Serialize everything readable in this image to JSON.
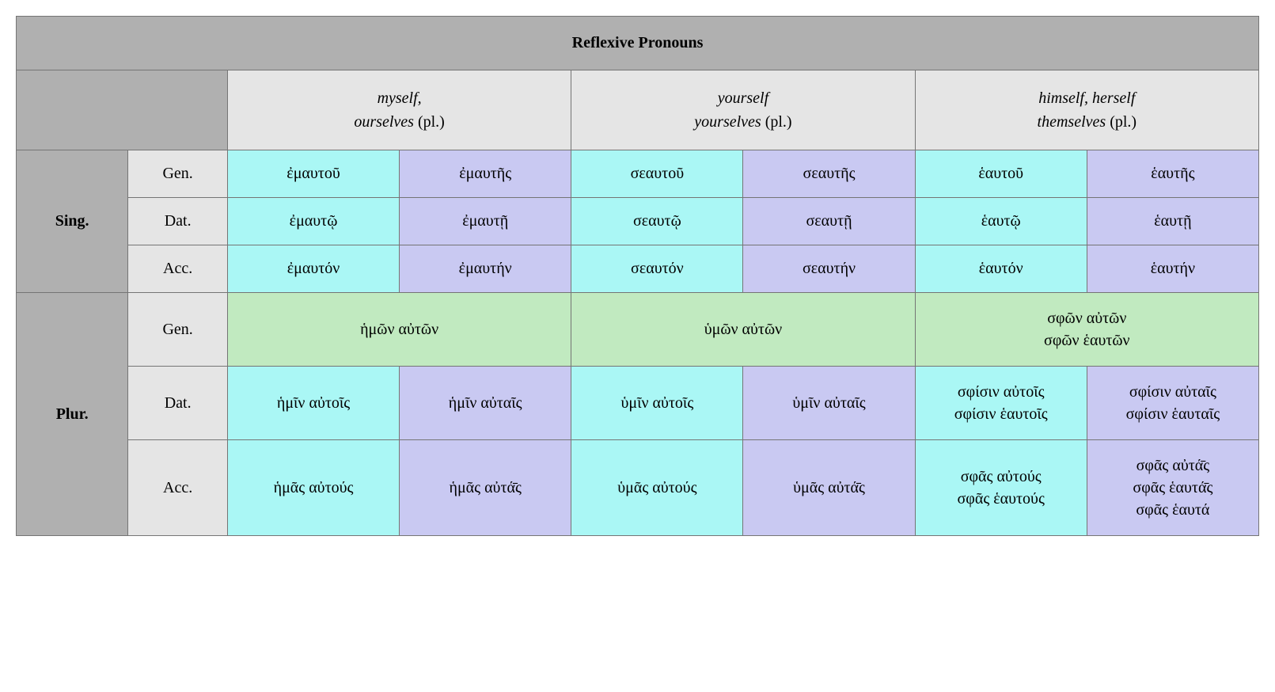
{
  "title": "Reflexive Pronouns",
  "colors": {
    "title_bg": "#b0b0b0",
    "header_bg": "#e5e5e5",
    "num_bg": "#b0b0b0",
    "case_bg": "#e5e5e5",
    "masc_bg": "#aaf7f5",
    "fem_bg": "#c9c9f2",
    "neut_bg": "#c1eac0",
    "border": "#757575"
  },
  "columns": [
    {
      "line1_italic": "myself,",
      "line2_italic": "ourselves",
      "line2_plain": " (pl.)"
    },
    {
      "line1_italic": "yourself",
      "line2_italic": "yourselves",
      "line2_plain": " (pl.)"
    },
    {
      "line1_italic": "himself, herself",
      "line2_italic": "themselves",
      "line2_plain": " (pl.)"
    }
  ],
  "numbers": {
    "sing": "Sing.",
    "plur": "Plur."
  },
  "cases": {
    "gen": "Gen.",
    "dat": "Dat.",
    "acc": "Acc."
  },
  "cells": {
    "s_gen_1m": "ἐμαυτοῦ",
    "s_gen_1f": "ἐμαυτῆς",
    "s_gen_2m": "σεαυτοῦ",
    "s_gen_2f": "σεαυτῆς",
    "s_gen_3m": "ἑαυτοῦ",
    "s_gen_3f": "ἑαυτῆς",
    "s_dat_1m": "ἐμαυτῷ",
    "s_dat_1f": "ἐμαυτῇ",
    "s_dat_2m": "σεαυτῷ",
    "s_dat_2f": "σεαυτῇ",
    "s_dat_3m": "ἑαυτῷ",
    "s_dat_3f": "ἑαυτῇ",
    "s_acc_1m": "ἐμαυτόν",
    "s_acc_1f": "ἐμαυτήν",
    "s_acc_2m": "σεαυτόν",
    "s_acc_2f": "σεαυτήν",
    "s_acc_3m": "ἑαυτόν",
    "s_acc_3f": "ἑαυτήν",
    "p_gen_1": "ἡμῶν αὐτῶν",
    "p_gen_2": "ὑμῶν αὐτῶν",
    "p_gen_3_a": "σφῶν αὐτῶν",
    "p_gen_3_b": "σφῶν ἑαυτῶν",
    "p_dat_1m": "ἡμῖν αὐτοῖς",
    "p_dat_1f": "ἡμῖν αὐταῖς",
    "p_dat_2m": "ὑμῖν αὐτοῖς",
    "p_dat_2f": "ὑμῖν αὐταῖς",
    "p_dat_3m_a": "σφίσιν αὐτοῖς",
    "p_dat_3m_b": "σφίσιν ἑαυτοῖς",
    "p_dat_3f_a": "σφίσιν αὐταῖς",
    "p_dat_3f_b": "σφίσιν ἑαυταῖς",
    "p_acc_1m": "ἡμᾶς αὐτούς",
    "p_acc_1f": "ἡμᾶς αὐτά̄ς",
    "p_acc_2m": "ὑμᾶς αὐτούς",
    "p_acc_2f": "ὑμᾶς αὐτά̄ς",
    "p_acc_3m_a": "σφᾶς αὐτούς",
    "p_acc_3m_b": "σφᾶς ἑαυτούς",
    "p_acc_3f_a": "σφᾶς αὐτά̄ς",
    "p_acc_3f_b": "σφᾶς ἑαυτά̄ς",
    "p_acc_3f_c": "σφᾶς ἑαυτά"
  }
}
